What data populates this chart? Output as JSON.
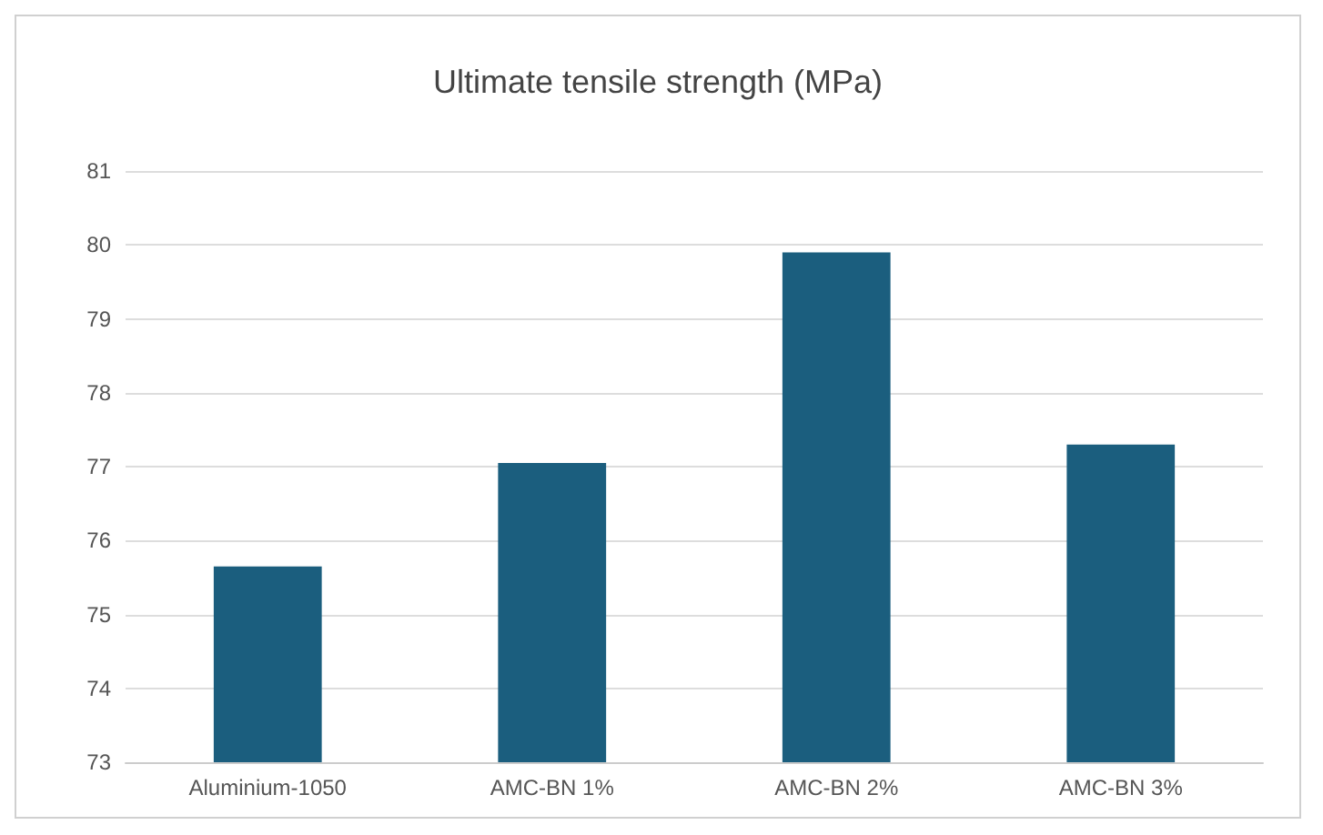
{
  "chart_data": {
    "type": "bar",
    "title": "Ultimate tensile strength (MPa)",
    "categories": [
      "Aluminium-1050",
      "AMC-BN 1%",
      "AMC-BN 2%",
      "AMC-BN 3%"
    ],
    "values": [
      75.65,
      77.05,
      79.9,
      77.3
    ],
    "color": "#1b5e7e",
    "ylim": [
      73,
      81
    ],
    "yticks": [
      73,
      74,
      75,
      76,
      77,
      78,
      79,
      80,
      81
    ],
    "grid": "y"
  }
}
